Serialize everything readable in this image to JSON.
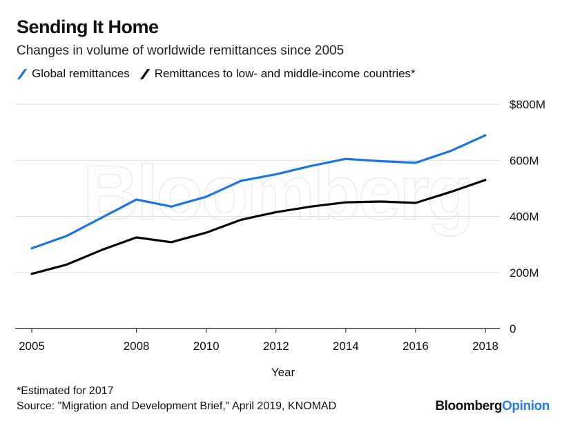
{
  "header": {
    "title": "Sending It Home",
    "subtitle": "Changes in volume of worldwide remittances since 2005"
  },
  "watermark": "Bloomberg",
  "footer": {
    "footnote": "*Estimated for 2017",
    "source": "Source: \"Migration and Development Brief,\" April 2019, KNOMAD",
    "brand_main": "Bloomberg",
    "brand_accent": "Opinion"
  },
  "colors": {
    "global": "#1a73e8",
    "lmic": "#000000",
    "grid": "#dddddd",
    "brand_accent": "#2a7de1"
  },
  "chart_data": {
    "type": "line",
    "title": "Sending It Home",
    "subtitle": "Changes in volume of worldwide remittances since 2005",
    "xlabel": "Year",
    "ylabel": "",
    "x": [
      2005,
      2006,
      2007,
      2008,
      2009,
      2010,
      2011,
      2012,
      2013,
      2014,
      2015,
      2016,
      2017,
      2018
    ],
    "xticks": [
      2005,
      2008,
      2010,
      2012,
      2014,
      2016,
      2018
    ],
    "xtick_labels": [
      "2005",
      "2008",
      "2010",
      "2012",
      "2014",
      "2016",
      "2018"
    ],
    "yticks": [
      0,
      200,
      400,
      600,
      800
    ],
    "ytick_labels": [
      "0",
      "200M",
      "400M",
      "600M",
      "$800M"
    ],
    "ylim": [
      0,
      800
    ],
    "xlim": [
      2005,
      2018
    ],
    "grid": true,
    "legend_position": "top-left",
    "series": [
      {
        "name": "Global remittances",
        "color": "#1a73e8",
        "values": [
          286,
          330,
          395,
          460,
          435,
          470,
          527,
          550,
          580,
          605,
          597,
          591,
          633,
          689
        ]
      },
      {
        "name": "Remittances to low- and middle-income countries*",
        "color": "#000000",
        "values": [
          195,
          228,
          280,
          325,
          308,
          342,
          388,
          415,
          435,
          450,
          453,
          448,
          487,
          530
        ]
      }
    ]
  }
}
